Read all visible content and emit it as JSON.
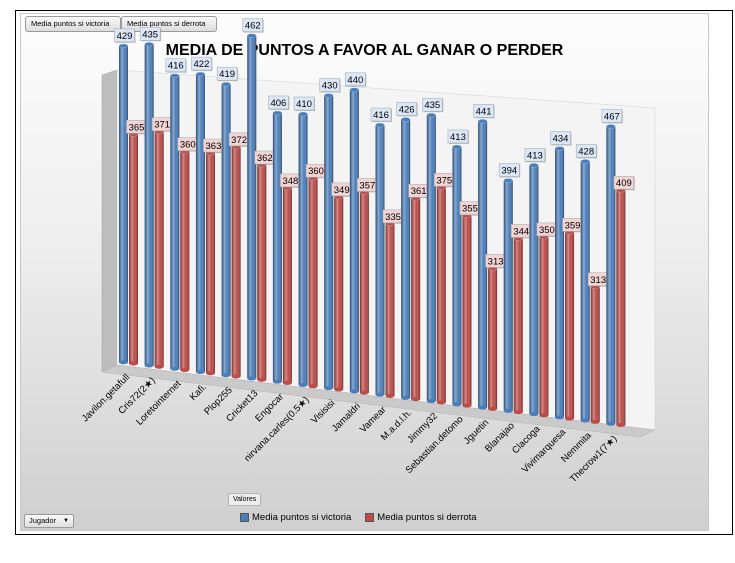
{
  "pivot": {
    "field_buttons": [
      "Media puntos si victoria",
      "Media puntos si derrota"
    ],
    "values_button": "Valores",
    "row_field": "Jugador"
  },
  "colors": {
    "victoria": "#4a7ebb",
    "derrota": "#be4b48"
  },
  "chart_data": {
    "type": "bar",
    "title": "MEDIA DE PUNTOS A FAVOR AL GANAR O PERDER",
    "xlabel": "",
    "ylabel": "",
    "categories": [
      "Javilon.getafull",
      "Cris72(2★)",
      "Loretointernet",
      "Kafi.",
      "Plop255",
      "Cricket13",
      "Engocar",
      "nirvana.carles(0.5★)",
      "Visisisi",
      "Jamaldri",
      "Vamear",
      "M.a.d.l.h.",
      "Jimmy32",
      "Sebastian.detomo",
      "Jguetin",
      "Blanajao",
      "Clacoga",
      "Vivimarquesa",
      "Nemmita",
      "Thecrow1(7★)"
    ],
    "series": [
      {
        "name": "Media puntos si victoria",
        "values": [
          429,
          435,
          416,
          422,
          419,
          462,
          406,
          410,
          430,
          440,
          416,
          426,
          435,
          413,
          441,
          394,
          413,
          434,
          428,
          467
        ]
      },
      {
        "name": "Media puntos si derrota",
        "values": [
          365,
          371,
          360,
          363,
          372,
          362,
          348,
          360,
          349,
          357,
          335,
          361,
          375,
          355,
          313,
          344,
          350,
          359,
          313,
          409
        ]
      }
    ],
    "legend": "bottom",
    "grid": false
  }
}
